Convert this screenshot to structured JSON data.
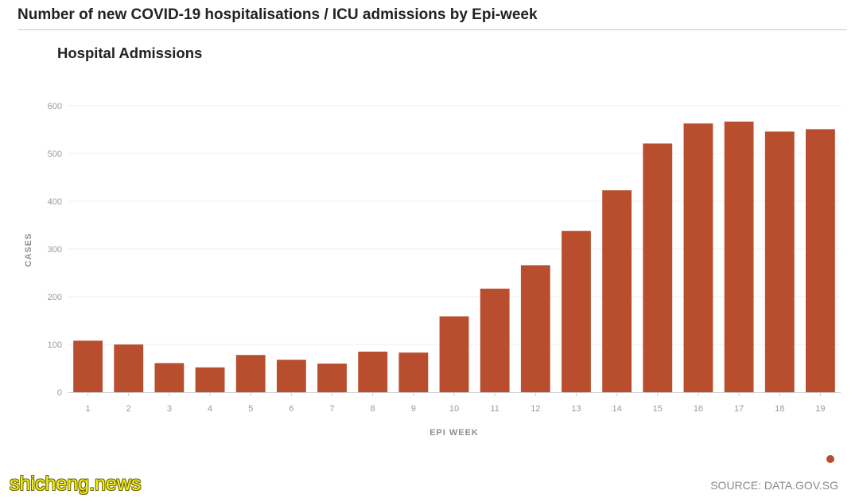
{
  "header": {
    "title": "Number of new COVID-19 hospitalisations / ICU admissions by Epi-week"
  },
  "chart_data": {
    "type": "bar",
    "title": "Hospital Admissions",
    "xlabel": "EPI WEEK",
    "ylabel": "CASES",
    "categories": [
      "1",
      "2",
      "3",
      "4",
      "5",
      "6",
      "7",
      "8",
      "9",
      "10",
      "11",
      "12",
      "13",
      "14",
      "15",
      "16",
      "17",
      "18",
      "19"
    ],
    "values": [
      108,
      100,
      61,
      52,
      78,
      68,
      60,
      85,
      83,
      159,
      217,
      266,
      338,
      423,
      521,
      563,
      567,
      546,
      551
    ],
    "yticks": [
      0,
      100,
      200,
      300,
      400,
      500,
      600
    ],
    "ylim": [
      0,
      600
    ],
    "grid": true,
    "colors": {
      "bar": "#b94e2f"
    }
  },
  "legend": {
    "color": "#b94e2f"
  },
  "watermark": "shicheng.news",
  "footer": {
    "source": "SOURCE: DATA.GOV.SG"
  }
}
